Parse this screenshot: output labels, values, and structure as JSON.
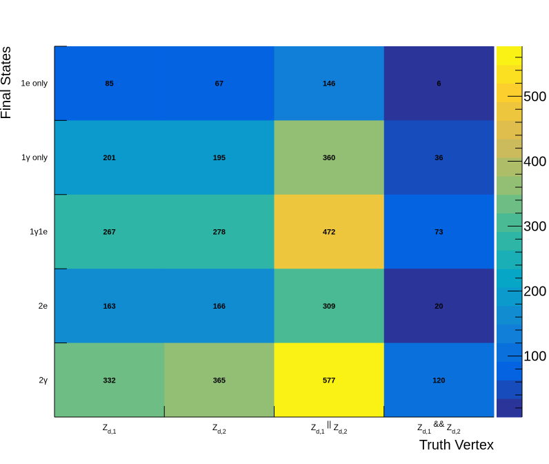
{
  "chart_data": {
    "type": "heatmap",
    "xlabel": "Truth Vertex",
    "ylabel": "Final States",
    "columns": [
      {
        "main": "Z",
        "sub": "d,1",
        "mid": "",
        "main2": "",
        "sub2": ""
      },
      {
        "main": "Z",
        "sub": "d,2",
        "mid": "",
        "main2": "",
        "sub2": ""
      },
      {
        "main": "Z",
        "sub": "d,1",
        "mid": " || ",
        "main2": "Z",
        "sub2": "d,2"
      },
      {
        "main": "Z",
        "sub": "d,1",
        "mid": " && ",
        "main2": "Z",
        "sub2": "d,2"
      }
    ],
    "rows": [
      "1e only",
      "1γ only",
      "1γ1e",
      "2e",
      "2γ"
    ],
    "values": [
      [
        85,
        67,
        146,
        6
      ],
      [
        201,
        195,
        360,
        36
      ],
      [
        267,
        278,
        472,
        73
      ],
      [
        163,
        166,
        309,
        20
      ],
      [
        332,
        365,
        577,
        120
      ]
    ],
    "zlim": [
      6,
      577
    ],
    "colorbar_ticks": [
      100,
      200,
      300,
      400,
      500
    ],
    "colormap": [
      "#352a87",
      "#0363e1",
      "#1485d4",
      "#06a7c6",
      "#38b99e",
      "#92bf73",
      "#d9ba56",
      "#fcce2e",
      "#f9fb0e"
    ]
  }
}
